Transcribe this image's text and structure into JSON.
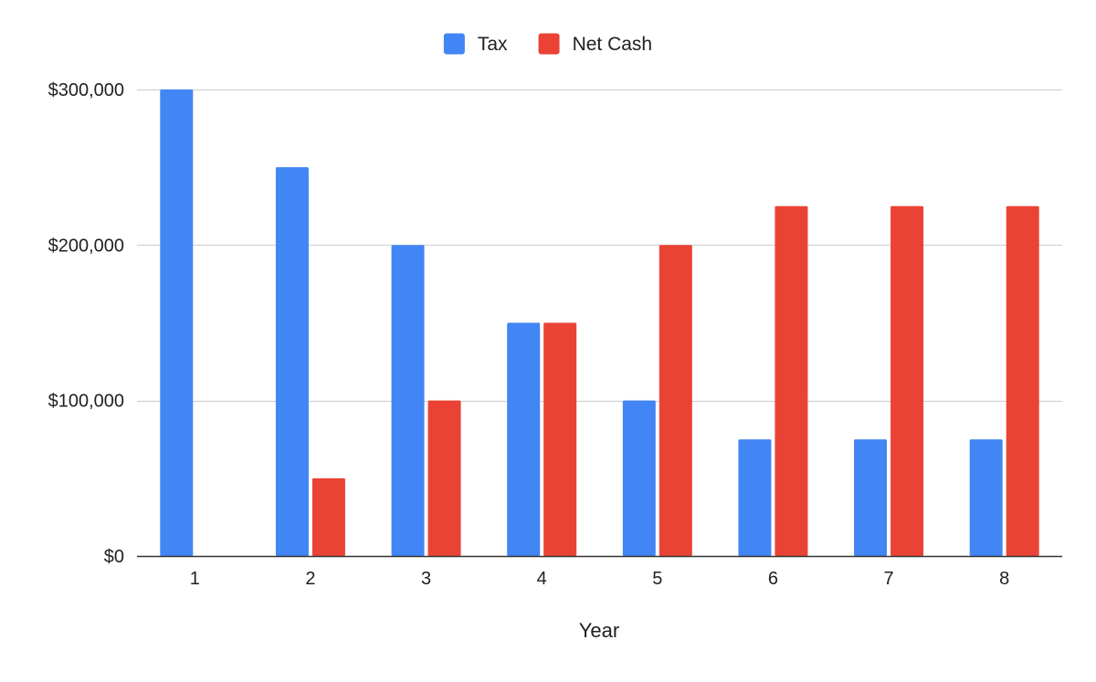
{
  "chart_data": {
    "type": "bar",
    "title": "",
    "xlabel": "Year",
    "ylabel": "",
    "categories": [
      "1",
      "2",
      "3",
      "4",
      "5",
      "6",
      "7",
      "8"
    ],
    "series": [
      {
        "name": "Tax",
        "color": "#4285F4",
        "values": [
          300000,
          250000,
          200000,
          150000,
          100000,
          75000,
          75000,
          75000
        ]
      },
      {
        "name": "Net Cash",
        "color": "#EA4335",
        "values": [
          0,
          50000,
          100000,
          150000,
          200000,
          225000,
          225000,
          225000
        ]
      }
    ],
    "ylim": [
      0,
      300000
    ],
    "yticks": [
      0,
      100000,
      200000,
      300000
    ],
    "ytick_labels": [
      "$0",
      "$100,000",
      "$200,000",
      "$300,000"
    ],
    "grid": true,
    "legend_position": "top-center"
  }
}
